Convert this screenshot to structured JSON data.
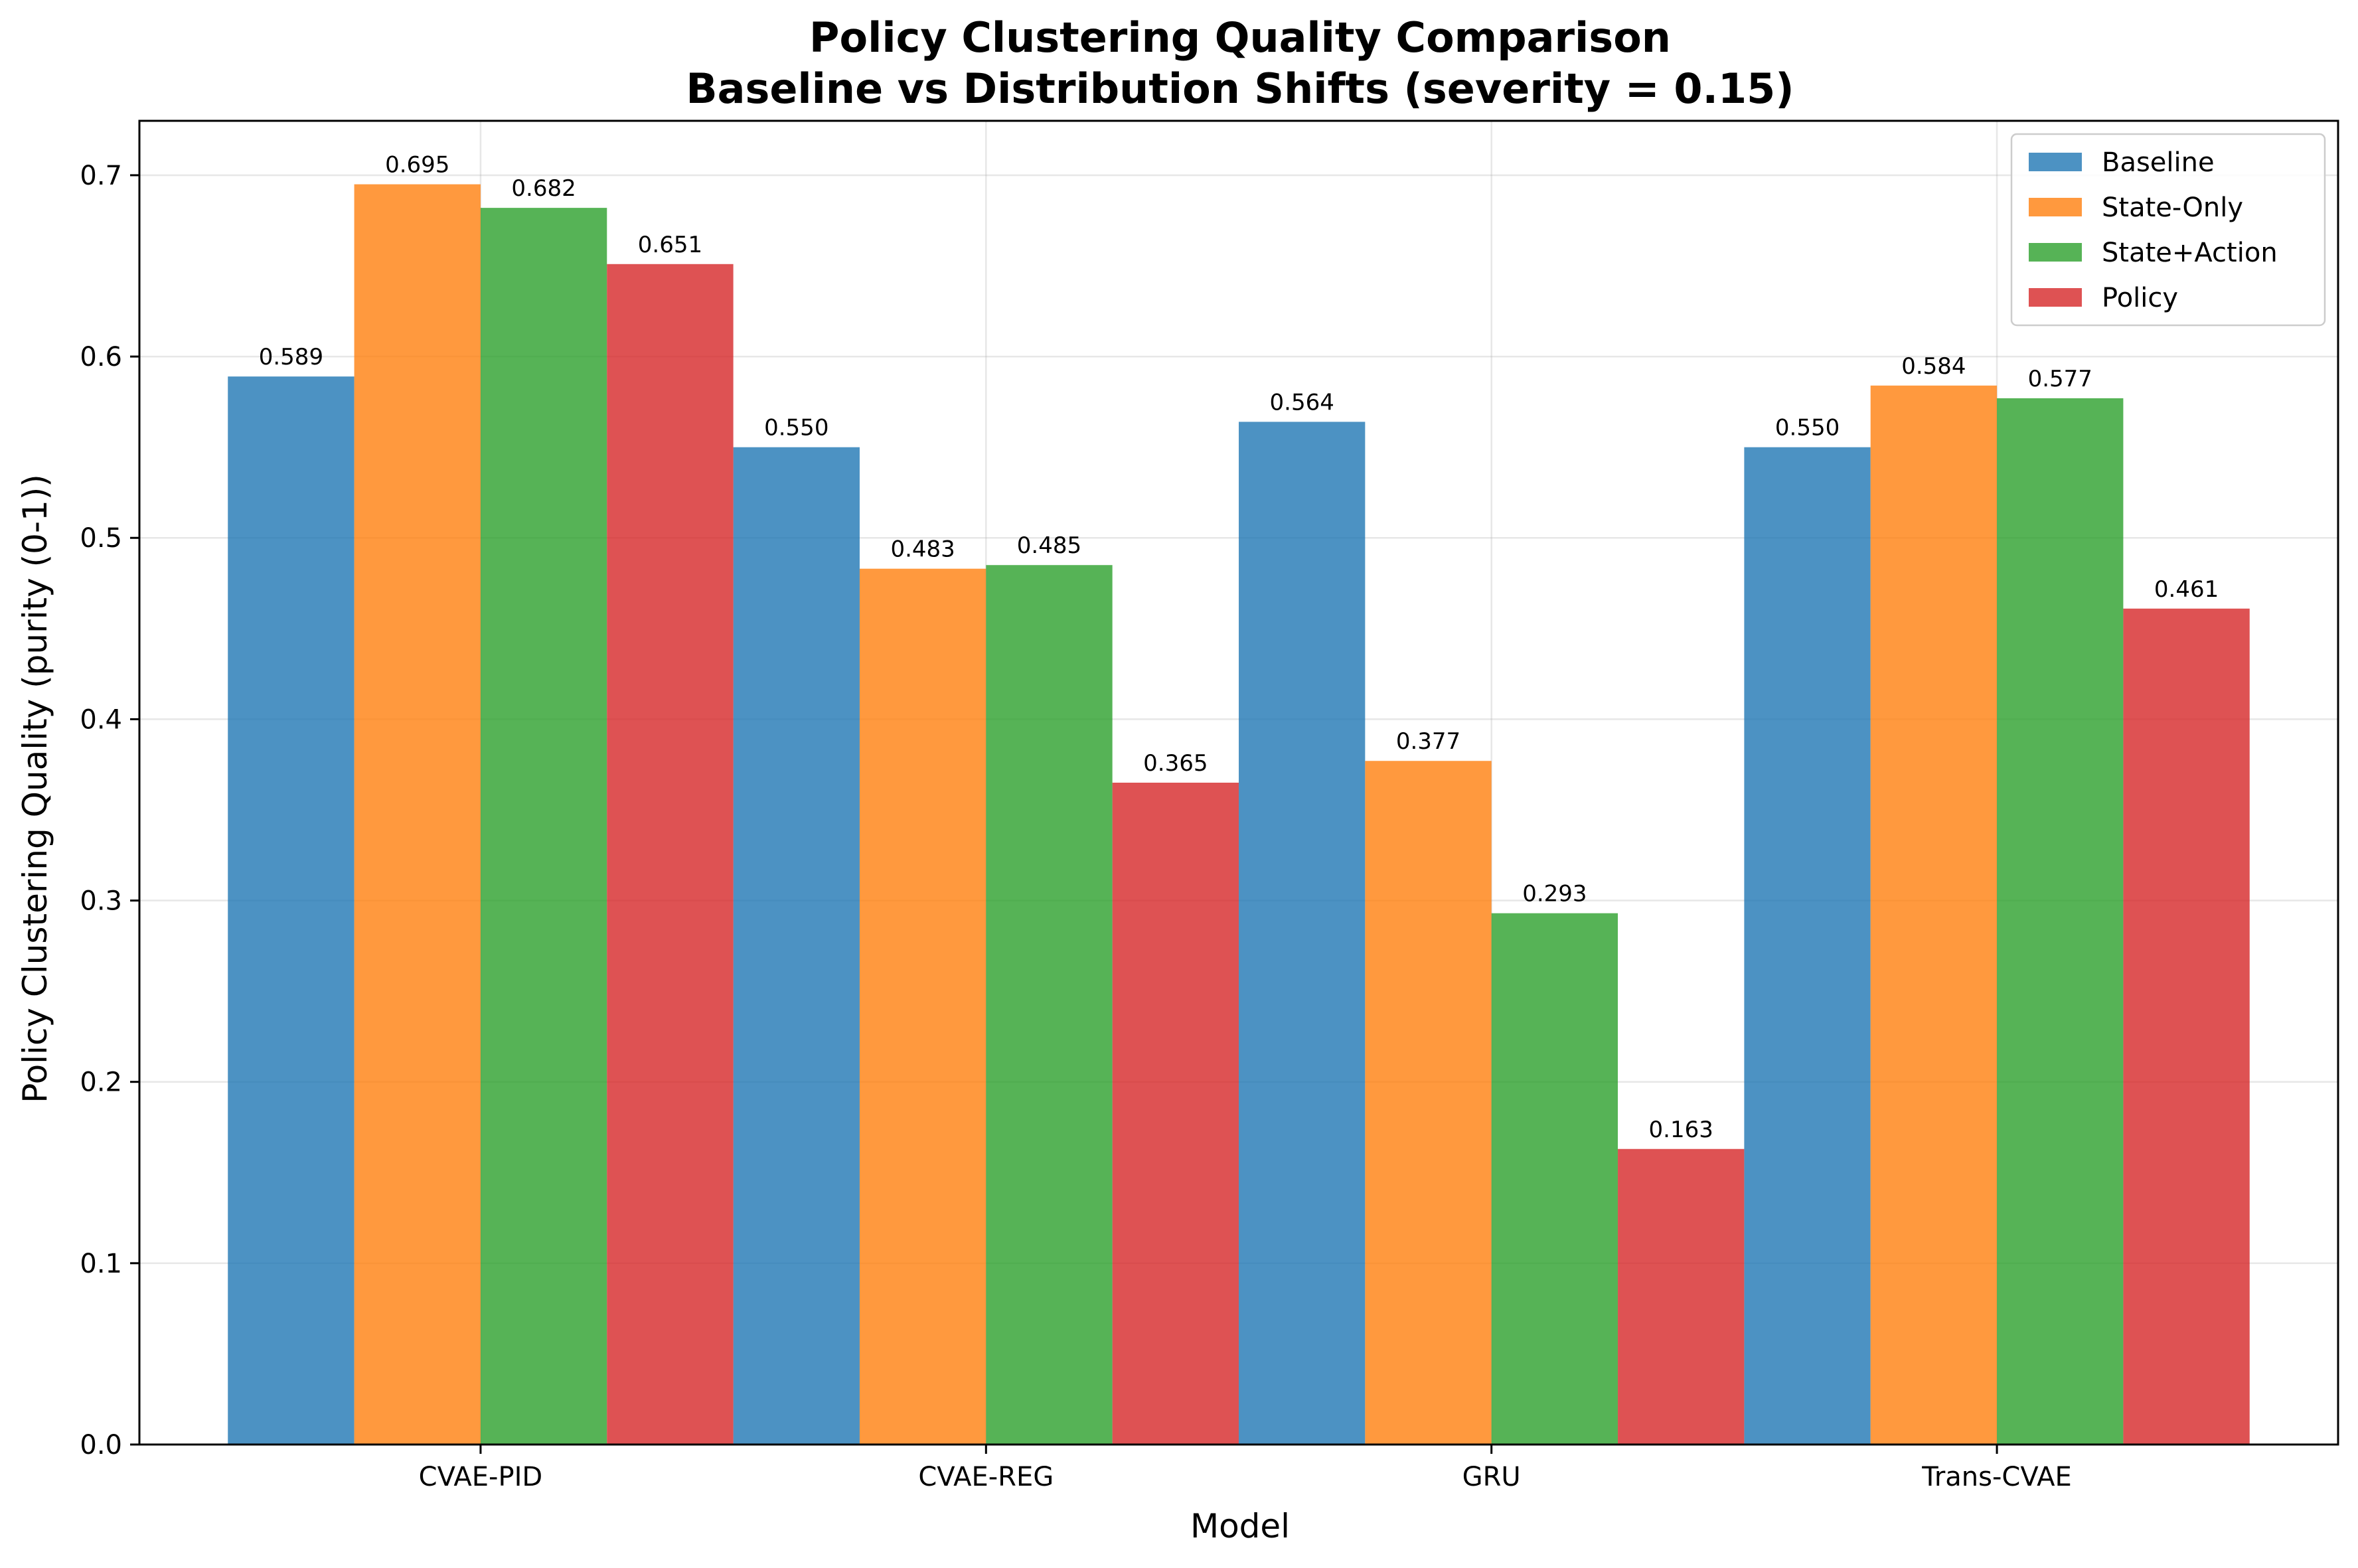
{
  "chart_data": {
    "type": "bar",
    "title": "Policy Clustering Quality Comparison",
    "subtitle": "Baseline vs Distribution Shifts (severity = 0.15)",
    "xlabel": "Model",
    "ylabel": "Policy Clustering Quality (purity (0-1))",
    "categories": [
      "CVAE-PID",
      "CVAE-REG",
      "GRU",
      "Trans-CVAE"
    ],
    "ylim": [
      0,
      0.73
    ],
    "yticks": [
      "0.0",
      "0.1",
      "0.2",
      "0.3",
      "0.4",
      "0.5",
      "0.6",
      "0.7"
    ],
    "grid": true,
    "legend_position": "top-right",
    "series": [
      {
        "name": "Baseline",
        "color": "#1f77b4",
        "values": [
          0.589,
          0.55,
          0.564,
          0.55
        ],
        "labels": [
          "0.589",
          "0.550",
          "0.564",
          "0.550"
        ]
      },
      {
        "name": "State-Only",
        "color": "#ff7f0e",
        "values": [
          0.695,
          0.483,
          0.377,
          0.584
        ],
        "labels": [
          "0.695",
          "0.483",
          "0.377",
          "0.584"
        ]
      },
      {
        "name": "State+Action",
        "color": "#2ca02c",
        "values": [
          0.682,
          0.485,
          0.293,
          0.577
        ],
        "labels": [
          "0.682",
          "0.485",
          "0.293",
          "0.577"
        ]
      },
      {
        "name": "Policy",
        "color": "#d62728",
        "values": [
          0.651,
          0.365,
          0.163,
          0.461
        ],
        "labels": [
          "0.651",
          "0.365",
          "0.163",
          "0.461"
        ]
      }
    ]
  }
}
